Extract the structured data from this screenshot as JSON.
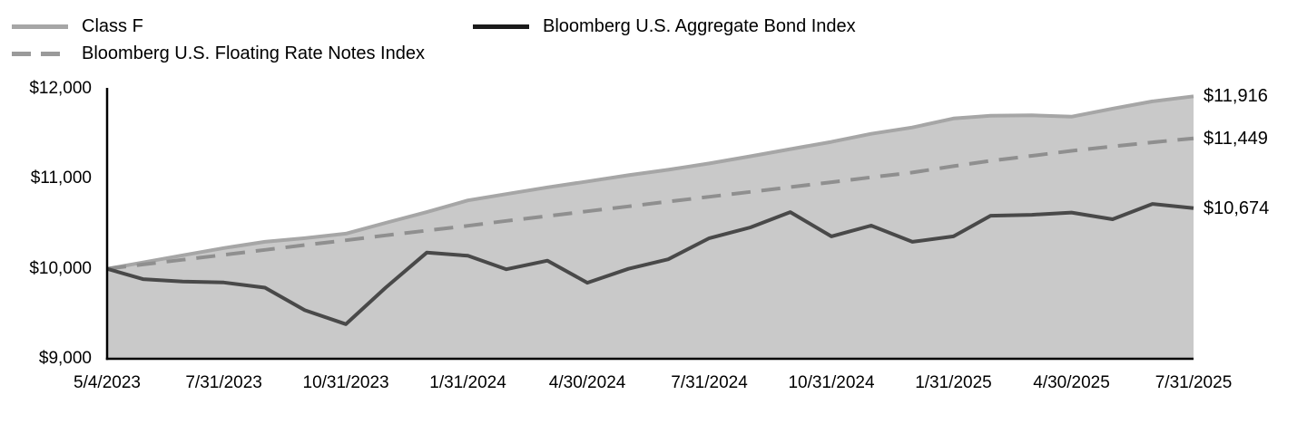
{
  "legend": {
    "items": [
      {
        "label": "Class F"
      },
      {
        "label": "Bloomberg U.S. Floating Rate Notes Index"
      },
      {
        "label": "Bloomberg U.S. Aggregate Bond Index"
      }
    ]
  },
  "colors": {
    "class_f_line": "#a6a6a6",
    "class_f_fill": "#c9c9c9",
    "frn_line": "#8f8f8f",
    "agg_line": "#494949",
    "axis": "#000000"
  },
  "chart_data": {
    "type": "area",
    "title": "",
    "xlabel": "",
    "ylabel": "",
    "grid": false,
    "legend_position": "top",
    "ylim": [
      9000,
      12000
    ],
    "x": [
      "2023-05-04",
      "2023-05-31",
      "2023-06-30",
      "2023-07-31",
      "2023-08-31",
      "2023-09-30",
      "2023-10-31",
      "2023-11-30",
      "2023-12-31",
      "2024-01-31",
      "2024-02-29",
      "2024-03-31",
      "2024-04-30",
      "2024-05-31",
      "2024-06-30",
      "2024-07-31",
      "2024-08-31",
      "2024-09-30",
      "2024-10-31",
      "2024-11-30",
      "2024-12-31",
      "2025-01-31",
      "2025-02-28",
      "2025-03-31",
      "2025-04-30",
      "2025-05-31",
      "2025-06-30",
      "2025-07-31"
    ],
    "x_tick_indices": [
      0,
      3,
      6,
      9,
      12,
      15,
      18,
      21,
      24,
      27
    ],
    "x_tick_labels": [
      "5/4/2023",
      "7/31/2023",
      "10/31/2023",
      "1/31/2024",
      "4/30/2024",
      "7/31/2024",
      "10/31/2024",
      "1/31/2025",
      "4/30/2025",
      "7/31/2025"
    ],
    "y_ticks": [
      {
        "label": "$12,000",
        "value": 12000
      },
      {
        "label": "$11,000",
        "value": 11000
      },
      {
        "label": "$10,000",
        "value": 10000
      },
      {
        "label": "$9,000",
        "value": 9000
      }
    ],
    "series": [
      {
        "name": "Class F",
        "style": "solid",
        "filled": true,
        "end_label": "$11,916",
        "values": [
          10000,
          10070,
          10150,
          10230,
          10300,
          10340,
          10390,
          10510,
          10630,
          10760,
          10830,
          10905,
          10970,
          11040,
          11100,
          11170,
          11250,
          11330,
          11410,
          11500,
          11570,
          11670,
          11700,
          11705,
          11690,
          11780,
          11860,
          11916
        ]
      },
      {
        "name": "Bloomberg U.S. Floating Rate Notes Index",
        "style": "dashed",
        "filled": false,
        "end_label": "$11,449",
        "values": [
          10000,
          10048,
          10100,
          10155,
          10210,
          10263,
          10317,
          10371,
          10424,
          10478,
          10532,
          10586,
          10639,
          10693,
          10747,
          10800,
          10854,
          10908,
          10962,
          11016,
          11070,
          11140,
          11200,
          11255,
          11310,
          11360,
          11405,
          11449
        ]
      },
      {
        "name": "Bloomberg U.S. Aggregate Bond Index",
        "style": "solid",
        "filled": false,
        "end_label": "$10,674",
        "values": [
          10000,
          9885,
          9858,
          9848,
          9790,
          9540,
          9385,
          9790,
          10180,
          10145,
          9995,
          10090,
          9845,
          10000,
          10105,
          10340,
          10460,
          10630,
          10360,
          10480,
          10300,
          10360,
          10590,
          10600,
          10625,
          10550,
          10720,
          10674
        ]
      }
    ]
  }
}
